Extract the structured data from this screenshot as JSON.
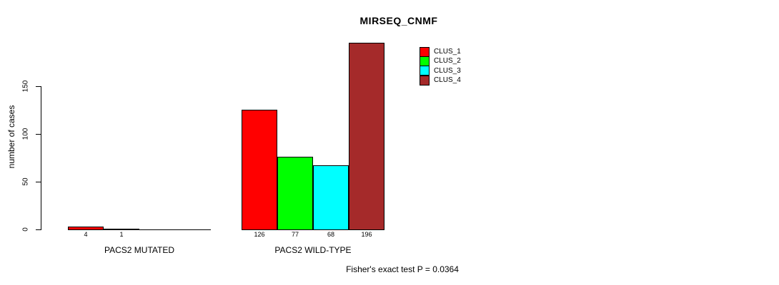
{
  "title": "MIRSEQ_CNMF",
  "chart_data": {
    "type": "bar",
    "title": "MIRSEQ_CNMF",
    "xlabel": "",
    "ylabel": "number of cases",
    "ylim": [
      0,
      150
    ],
    "yticks": [
      0,
      50,
      100,
      150
    ],
    "grid": false,
    "legend_position": "top-right",
    "annotation": "Fisher's exact test P = 0.0364",
    "series": [
      {
        "name": "CLUS_1",
        "color": "#ff0000"
      },
      {
        "name": "CLUS_2",
        "color": "#00ff00"
      },
      {
        "name": "CLUS_3",
        "color": "#00ffff"
      },
      {
        "name": "CLUS_4",
        "color": "#a52a2a"
      }
    ],
    "groups": [
      {
        "label": "PACS2 MUTATED",
        "values": [
          4,
          1,
          0,
          0
        ],
        "value_labels": [
          "4",
          "1",
          "",
          ""
        ]
      },
      {
        "label": "PACS2 WILD-TYPE",
        "values": [
          126,
          77,
          68,
          196
        ],
        "value_labels": [
          "126",
          "77",
          "68",
          "196"
        ]
      }
    ]
  }
}
